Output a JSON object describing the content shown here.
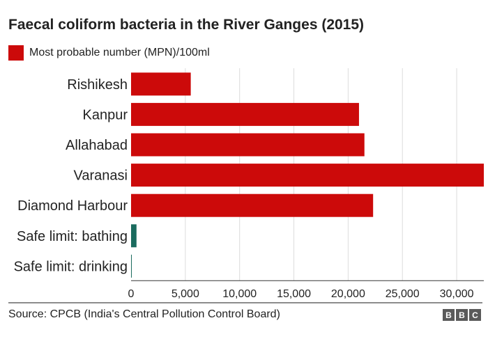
{
  "title": "Faecal coliform bacteria in the River Ganges (2015)",
  "legend": {
    "label": "Most probable number (MPN)/100ml",
    "color": "#cc0a0a"
  },
  "source": "Source: CPCB (India's Central Pollution Control Board)",
  "logo": {
    "letters": [
      "B",
      "B",
      "C"
    ]
  },
  "chart_data": {
    "type": "bar",
    "orientation": "horizontal",
    "title": "Faecal coliform bacteria in the River Ganges (2015)",
    "xlabel": "",
    "ylabel": "",
    "categories": [
      "Rishikesh",
      "Kanpur",
      "Allahabad",
      "Varanasi",
      "Diamond Harbour",
      "Safe limit: bathing",
      "Safe limit: drinking"
    ],
    "values": [
      5500,
      21000,
      21500,
      32500,
      22300,
      500,
      50
    ],
    "bar_colors": [
      "#cc0a0a",
      "#cc0a0a",
      "#cc0a0a",
      "#cc0a0a",
      "#cc0a0a",
      "#1a6b5e",
      "#1a6b5e"
    ],
    "xlim": [
      0,
      32500
    ],
    "x_ticks": [
      0,
      5000,
      10000,
      15000,
      20000,
      25000,
      30000
    ],
    "x_tick_labels": [
      "0",
      "5,000",
      "10,000",
      "15,000",
      "20,000",
      "25,000",
      "30,000"
    ],
    "grid": "vertical",
    "legend_position": "top-left",
    "series": [
      {
        "name": "Most probable number (MPN)/100ml"
      }
    ]
  }
}
